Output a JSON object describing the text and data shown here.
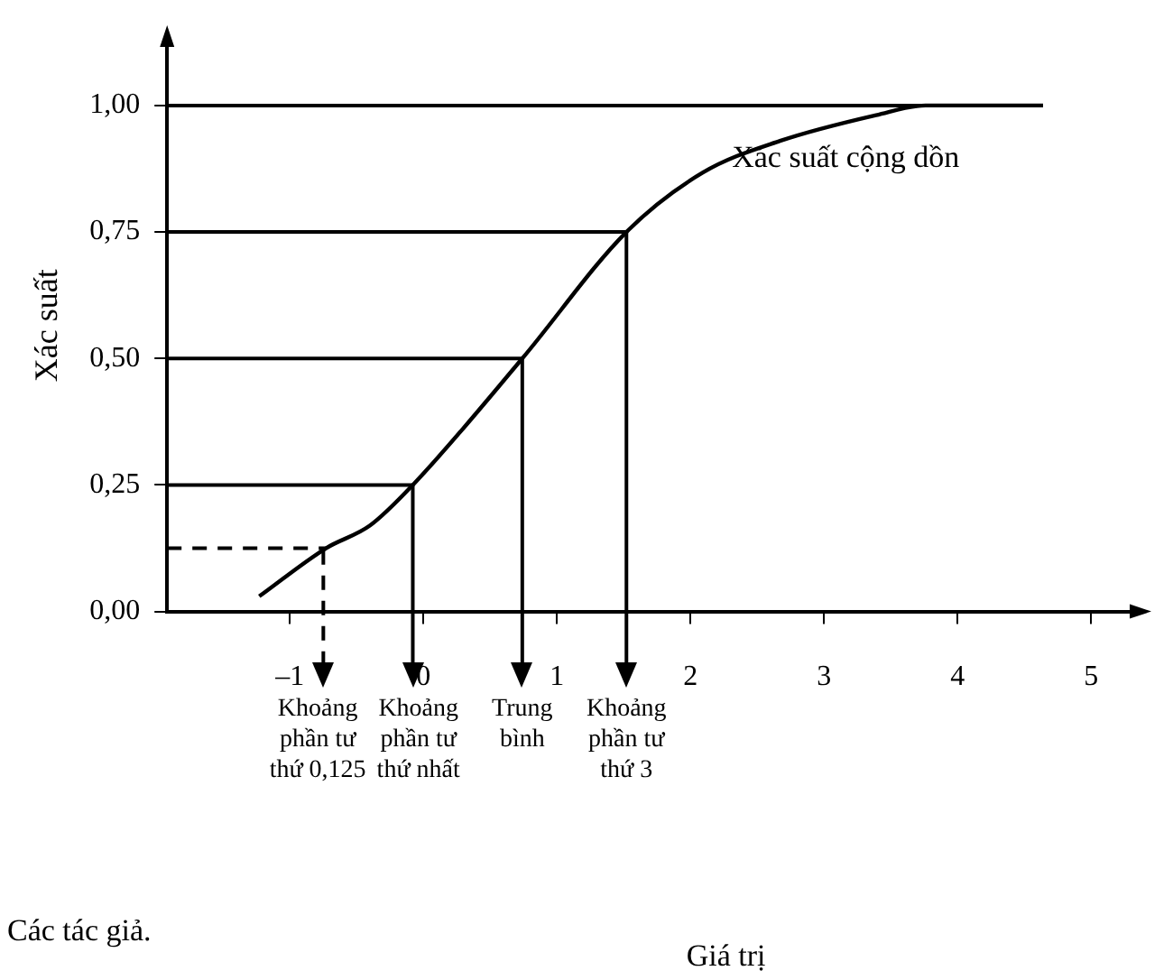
{
  "chart_data": {
    "type": "line",
    "ylabel": "Xác suất",
    "series": [
      {
        "color": "#000000",
        "x": [
          -1.23,
          -0.73,
          -0.4,
          -0.08,
          0.74,
          1.52,
          2.09,
          2.67,
          3.39,
          3.76,
          4.64
        ],
        "values": [
          0.03,
          0.125,
          0.17,
          0.25,
          0.5,
          0.75,
          0.867,
          0.93,
          0.981,
          1.0,
          1.0
        ]
      }
    ],
    "xlim": [
      -1.92,
      5.37
    ],
    "ylim": [
      0,
      1.13
    ],
    "xticks": [
      {
        "value": -1,
        "label": "–1"
      },
      0,
      1,
      2,
      3,
      4,
      5
    ],
    "yticks": [
      {
        "value": 0,
        "label": "0,00"
      },
      {
        "value": 0.25,
        "label": "0,25"
      },
      {
        "value": 0.5,
        "label": "0,50"
      },
      {
        "value": 0.75,
        "label": "0,75"
      },
      {
        "value": 1,
        "label": "1,00"
      }
    ],
    "ref_lines": [
      {
        "axis": "y",
        "value": 0.125,
        "line_style": "dashed"
      },
      {
        "axis": "y",
        "value": 0.25
      },
      {
        "axis": "y",
        "value": 0.5
      },
      {
        "axis": "y",
        "value": 0.75
      },
      {
        "axis": "y",
        "value": 1.0
      },
      {
        "axis": "x",
        "value": -0.75,
        "line_style": "dashed",
        "label": "Khoảng phần tư thứ 0,125"
      },
      {
        "axis": "x",
        "value": -0.08,
        "label": "Khoảng phần tư thứ nhất"
      },
      {
        "axis": "x",
        "value": 0.74,
        "label": "Trung bình"
      },
      {
        "axis": "x",
        "value": 1.52,
        "label": "Khoảng phần tư thứ 3"
      }
    ],
    "annotations": [
      {
        "text": "Xác suất cộng dồn",
        "x": 2.31,
        "y": 0.895
      },
      "Các tác giả.",
      "Giá trị"
    ],
    "grid": false,
    "legend": false,
    "marker": "none",
    "line_style": "solid"
  }
}
